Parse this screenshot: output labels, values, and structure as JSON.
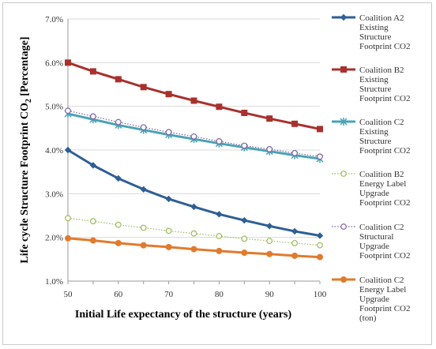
{
  "chart_data": {
    "type": "line",
    "xlabel": "Initial Life expectancy of the structure (years)",
    "ylabel_main": "Life cycle Structure Footprint CO",
    "ylabel_sub": "2",
    "ylabel_tail": " [Percentage]",
    "x": [
      50,
      55,
      60,
      65,
      70,
      75,
      80,
      85,
      90,
      95,
      100
    ],
    "x_ticks": [
      50,
      60,
      70,
      80,
      90,
      100
    ],
    "xlim": [
      50,
      100
    ],
    "ylim": [
      1.0,
      7.0
    ],
    "y_ticks": [
      "1.0%",
      "2.0%",
      "3.0%",
      "4.0%",
      "5.0%",
      "6.0%",
      "7.0%"
    ],
    "y_tick_values": [
      1,
      2,
      3,
      4,
      5,
      6,
      7
    ],
    "grid": "horizontal",
    "legend_position": "right",
    "series": [
      {
        "name": "Coalition A2 Existing Structure Footprint CO2",
        "legend_lines": [
          "Coalition A2",
          "Existing",
          "Structure",
          "Footprint CO2"
        ],
        "color": "#2e5f95",
        "marker": "diamond",
        "line": "solid",
        "values": [
          4.0,
          3.65,
          3.35,
          3.1,
          2.88,
          2.7,
          2.53,
          2.39,
          2.26,
          2.14,
          2.04
        ]
      },
      {
        "name": "Coalition B2 Existing Structure Footprint CO2",
        "legend_lines": [
          "Coalition B2",
          "Existing",
          "Structure",
          "Footprint CO2"
        ],
        "color": "#a8312e",
        "marker": "square",
        "line": "solid",
        "values": [
          6.0,
          5.8,
          5.62,
          5.44,
          5.28,
          5.13,
          4.99,
          4.85,
          4.72,
          4.6,
          4.48
        ]
      },
      {
        "name": "Coalition C2 Existing Structure Footprint CO2",
        "legend_lines": [
          "Coalition C2",
          "Existing",
          "Structure",
          "Footprint CO2"
        ],
        "color": "#4aa3b4",
        "marker": "star",
        "line": "solid",
        "values": [
          4.83,
          4.7,
          4.57,
          4.46,
          4.35,
          4.25,
          4.15,
          4.06,
          3.97,
          3.88,
          3.8
        ]
      },
      {
        "name": "Coalition B2 Energy Label Upgrade Footprint CO2",
        "legend_lines": [
          "Coalition B2",
          "Energy Label",
          "Upgrade",
          "Footprint CO2"
        ],
        "color": "#9bbb59",
        "marker": "circle-open",
        "line": "dotted",
        "values": [
          2.44,
          2.37,
          2.29,
          2.22,
          2.15,
          2.09,
          2.03,
          1.97,
          1.92,
          1.87,
          1.82
        ]
      },
      {
        "name": "Coalition C2 Structural Upgrade Footprint CO2",
        "legend_lines": [
          "Coalition C2",
          "Structural",
          "Upgrade",
          "Footprint CO2"
        ],
        "color": "#8064a2",
        "marker": "circle-open",
        "line": "dotted",
        "values": [
          4.9,
          4.77,
          4.64,
          4.52,
          4.41,
          4.31,
          4.2,
          4.1,
          4.02,
          3.93,
          3.85
        ]
      },
      {
        "name": "Coalition C2 Energy Label Upgrade Footprint CO2 (ton)",
        "legend_lines": [
          "Coalition C2",
          "Energy Label",
          "Upgrade",
          "Footprint CO2",
          "(ton)"
        ],
        "color": "#e07b2e",
        "marker": "circle",
        "line": "solid",
        "values": [
          1.98,
          1.93,
          1.87,
          1.82,
          1.78,
          1.73,
          1.69,
          1.65,
          1.62,
          1.58,
          1.55
        ]
      }
    ]
  }
}
